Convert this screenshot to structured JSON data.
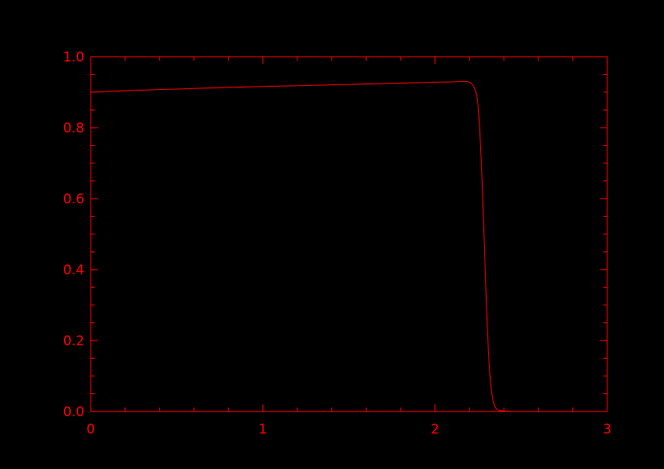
{
  "chart_data": {
    "type": "line",
    "title": "",
    "xlabel": "",
    "ylabel": "",
    "xlim": [
      0,
      3
    ],
    "ylim": [
      0,
      1
    ],
    "grid": false,
    "legend": "none",
    "colors": {
      "background": "#000000",
      "axes": "#ff0000",
      "line": "#ff0000"
    },
    "x_ticks": [
      {
        "value": 0,
        "label": "0"
      },
      {
        "value": 1,
        "label": "1"
      },
      {
        "value": 2,
        "label": "2"
      },
      {
        "value": 3,
        "label": "3"
      }
    ],
    "y_ticks": [
      {
        "value": 0.0,
        "label": "0.0"
      },
      {
        "value": 0.2,
        "label": "0.2"
      },
      {
        "value": 0.4,
        "label": "0.4"
      },
      {
        "value": 0.6,
        "label": "0.6"
      },
      {
        "value": 0.8,
        "label": "0.8"
      },
      {
        "value": 1.0,
        "label": "1.0"
      }
    ],
    "x_minor_step": 0.2,
    "y_minor_step": 0.05,
    "series": [
      {
        "x": [
          0.0,
          0.25,
          0.5,
          0.75,
          1.0,
          1.25,
          1.5,
          1.75,
          2.0,
          2.1,
          2.15,
          2.18,
          2.2,
          2.22,
          2.24,
          2.25,
          2.26,
          2.27,
          2.28,
          2.29,
          2.3,
          2.31,
          2.32,
          2.33,
          2.34,
          2.35,
          2.36,
          2.38,
          2.4,
          2.45,
          2.5,
          2.75,
          3.0
        ],
        "y": [
          0.9,
          0.905,
          0.909,
          0.913,
          0.916,
          0.919,
          0.922,
          0.925,
          0.928,
          0.929,
          0.93,
          0.93,
          0.928,
          0.92,
          0.895,
          0.86,
          0.79,
          0.69,
          0.56,
          0.42,
          0.28,
          0.17,
          0.095,
          0.05,
          0.025,
          0.012,
          0.006,
          0.002,
          0.001,
          0.0,
          0.0,
          0.0,
          0.0
        ]
      }
    ]
  }
}
